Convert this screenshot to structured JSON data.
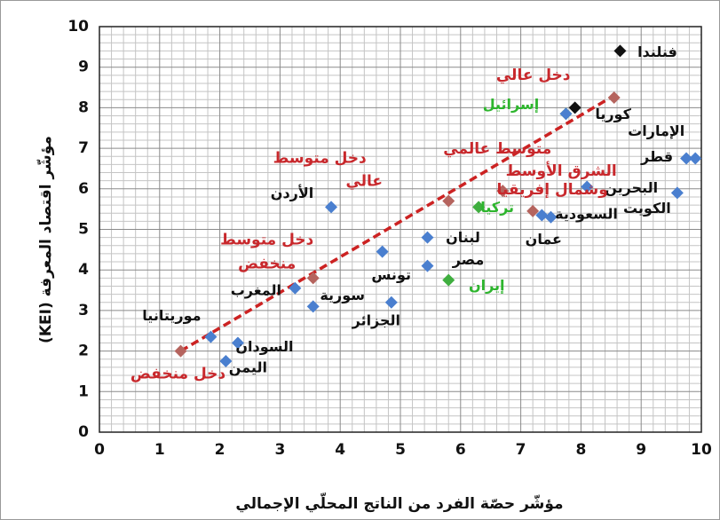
{
  "chart_data": {
    "type": "scatter",
    "xlabel": "مؤشّر حصّة الفرد من الناتج المحلّي الإجمالي",
    "ylabel": "(KEI)  مؤشّر اقتصاد المعرفة",
    "xlim": [
      0,
      10
    ],
    "xticks": [
      0,
      1,
      2,
      3,
      4,
      5,
      6,
      7,
      8,
      9,
      10
    ],
    "ylim": [
      0,
      10
    ],
    "yticks": [
      0,
      1,
      2,
      3,
      4,
      5,
      6,
      7,
      8,
      9,
      10
    ],
    "grid": true,
    "minor_divisions": 5,
    "series": [
      {
        "color": "#3fae3f",
        "label_color": "#2db52d",
        "x": [
          7.75,
          6.3,
          5.8
        ],
        "y": [
          7.85,
          5.55,
          3.75
        ],
        "labels": [
          "إسرائيل",
          "تركيا",
          "إيران"
        ]
      },
      {
        "color": "#4a7fcf",
        "label_color": "#111111",
        "x": [
          1.85,
          2.1,
          2.3,
          3.25,
          3.55,
          3.85,
          4.7,
          4.85,
          5.45,
          5.45,
          7.35,
          7.5,
          8.1,
          9.6,
          9.75,
          9.9,
          7.75
        ],
        "y": [
          2.35,
          1.75,
          2.2,
          3.55,
          3.1,
          5.55,
          4.45,
          3.2,
          4.8,
          4.1,
          5.35,
          5.3,
          6.05,
          5.9,
          6.75,
          6.75,
          7.85
        ],
        "labels": [
          "موريتانيا",
          "اليمن",
          "السودان",
          "المغرب",
          "سورية",
          "الأردن",
          "تونس",
          "الجزائر",
          "لبنان",
          "مصر",
          "عمان",
          "السعودية",
          "البحرين",
          "الكويت",
          "قطر",
          "الإمارات",
          null
        ]
      },
      {
        "color": "#111111",
        "label_color": "#111111",
        "x": [
          8.65,
          7.9
        ],
        "y": [
          9.4,
          8.0
        ],
        "labels": [
          "فنلندا",
          "كوريا"
        ]
      },
      {
        "color": "#b5645e",
        "label_color": "#c8282c",
        "x": [
          1.35,
          3.55,
          5.8,
          6.7,
          7.2,
          8.55
        ],
        "y": [
          2.0,
          3.8,
          5.7,
          5.95,
          5.45,
          8.25
        ],
        "labels": [
          [
            "دخل منخفض"
          ],
          [
            "دخل متوسط",
            "منخفض"
          ],
          [
            "دخل متوسط",
            "عالي"
          ],
          [
            "متوسط عالمي"
          ],
          [
            "الشرق الأوسط",
            "وشمال إفريقيا"
          ],
          [
            "دخل عالي"
          ]
        ]
      }
    ],
    "trendline": {
      "color": "#cc2222",
      "x": [
        1.35,
        8.55
      ],
      "y": [
        2.0,
        8.3
      ]
    }
  }
}
